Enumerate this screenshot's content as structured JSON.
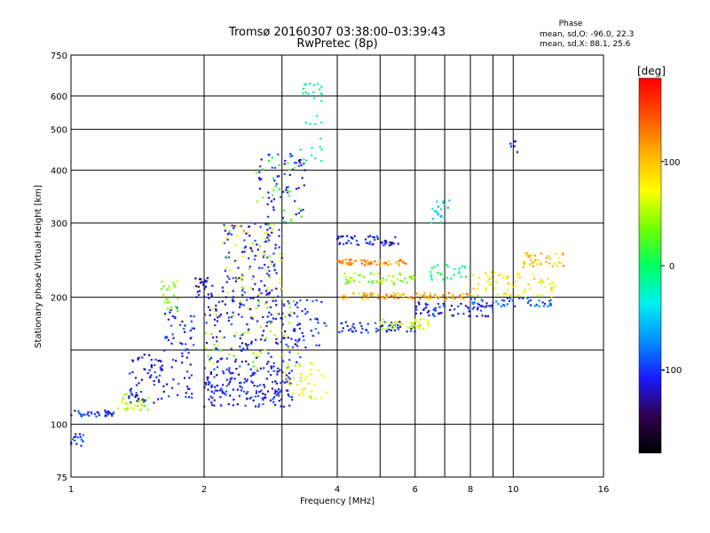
{
  "chart_data": {
    "type": "scatter",
    "title": "Tromsø 20160307 03:38:00–03:39:43",
    "subtitle": "RwPretec (8p)",
    "xlabel": "Frequency [MHz]",
    "ylabel": "Stationary phase Virtual Height [km]",
    "x_scale": "log",
    "y_scale": "log",
    "xlim": [
      1,
      16
    ],
    "ylim": [
      75,
      750
    ],
    "x_ticks": [
      1,
      2,
      4,
      6,
      8,
      10,
      16
    ],
    "x_minor_gridlines": [
      3,
      5,
      7,
      9
    ],
    "y_ticks": [
      75,
      100,
      200,
      300,
      400,
      500,
      600,
      750
    ],
    "y_minor_gridlines": [
      150
    ],
    "grid": true,
    "colorbar": {
      "label": "[deg]",
      "range": [
        -180,
        180
      ],
      "ticks": [
        100,
        0,
        -100
      ],
      "stops": [
        "#000000",
        "#300050",
        "#1a1aff",
        "#0090ff",
        "#00f0f0",
        "#00ff60",
        "#70ff00",
        "#ffff00",
        "#ffb000",
        "#ff5000",
        "#ff0000"
      ]
    },
    "stats": {
      "heading": "Phase",
      "line_O": "mean, sd,O: -96.0, 22.3",
      "line_X": "mean, sd,X: 88.1, 25.6"
    },
    "clusters": [
      {
        "x": [
          1.0,
          1.25
        ],
        "y": [
          104,
          108
        ],
        "phase": -100,
        "n": 35
      },
      {
        "x": [
          1.0,
          1.08
        ],
        "y": [
          88,
          96
        ],
        "phase": -105,
        "n": 15
      },
      {
        "x": [
          1.25,
          1.5
        ],
        "y": [
          108,
          118
        ],
        "phase": 45,
        "n": 30
      },
      {
        "x": [
          1.35,
          1.6
        ],
        "y": [
          112,
          150
        ],
        "phase": -110,
        "n": 60
      },
      {
        "x": [
          1.6,
          1.75
        ],
        "y": [
          180,
          220
        ],
        "phase": 40,
        "n": 25
      },
      {
        "x": [
          1.6,
          1.9
        ],
        "y": [
          115,
          190
        ],
        "phase": -110,
        "n": 70
      },
      {
        "x": [
          1.9,
          2.1
        ],
        "y": [
          200,
          225
        ],
        "phase": -115,
        "n": 25
      },
      {
        "x": [
          2.0,
          3.2
        ],
        "y": [
          110,
          135
        ],
        "phase": -110,
        "n": 170
      },
      {
        "x": [
          2.0,
          3.3
        ],
        "y": [
          135,
          200
        ],
        "phase": -110,
        "n": 160
      },
      {
        "x": [
          2.0,
          3.3
        ],
        "y": [
          135,
          200
        ],
        "phase": 50,
        "n": 60
      },
      {
        "x": [
          2.2,
          3.0
        ],
        "y": [
          200,
          300
        ],
        "phase": -110,
        "n": 110
      },
      {
        "x": [
          2.2,
          3.0
        ],
        "y": [
          200,
          300
        ],
        "phase": 60,
        "n": 50
      },
      {
        "x": [
          2.6,
          3.4
        ],
        "y": [
          300,
          440
        ],
        "phase": -105,
        "n": 60
      },
      {
        "x": [
          2.6,
          3.4
        ],
        "y": [
          300,
          440
        ],
        "phase": 20,
        "n": 25
      },
      {
        "x": [
          3.3,
          3.7
        ],
        "y": [
          400,
          650
        ],
        "phase": -20,
        "n": 30
      },
      {
        "x": [
          3.0,
          3.8
        ],
        "y": [
          115,
          140
        ],
        "phase": 70,
        "n": 40
      },
      {
        "x": [
          3.0,
          3.8
        ],
        "y": [
          150,
          200
        ],
        "phase": -100,
        "n": 40
      },
      {
        "x": [
          4.0,
          5.5
        ],
        "y": [
          265,
          280
        ],
        "phase": -110,
        "n": 50
      },
      {
        "x": [
          4.0,
          5.8
        ],
        "y": [
          238,
          246
        ],
        "phase": 120,
        "n": 60
      },
      {
        "x": [
          4.0,
          6.0
        ],
        "y": [
          215,
          228
        ],
        "phase": 40,
        "n": 50
      },
      {
        "x": [
          4.0,
          8.0
        ],
        "y": [
          198,
          205
        ],
        "phase": 110,
        "n": 90
      },
      {
        "x": [
          4.0,
          6.0
        ],
        "y": [
          165,
          175
        ],
        "phase": -100,
        "n": 50
      },
      {
        "x": [
          5.0,
          6.5
        ],
        "y": [
          168,
          178
        ],
        "phase": 60,
        "n": 40
      },
      {
        "x": [
          6.0,
          9.0
        ],
        "y": [
          180,
          195
        ],
        "phase": -110,
        "n": 70
      },
      {
        "x": [
          6.5,
          7.2
        ],
        "y": [
          300,
          340
        ],
        "phase": -40,
        "n": 20
      },
      {
        "x": [
          6.5,
          8.0
        ],
        "y": [
          220,
          240
        ],
        "phase": -10,
        "n": 25
      },
      {
        "x": [
          8.0,
          12.5
        ],
        "y": [
          200,
          230
        ],
        "phase": 80,
        "n": 70
      },
      {
        "x": [
          8.0,
          12.5
        ],
        "y": [
          190,
          200
        ],
        "phase": -90,
        "n": 45
      },
      {
        "x": [
          10.5,
          13.0
        ],
        "y": [
          235,
          255
        ],
        "phase": 100,
        "n": 40
      },
      {
        "x": [
          9.5,
          10.5
        ],
        "y": [
          440,
          470
        ],
        "phase": -120,
        "n": 6
      }
    ]
  }
}
